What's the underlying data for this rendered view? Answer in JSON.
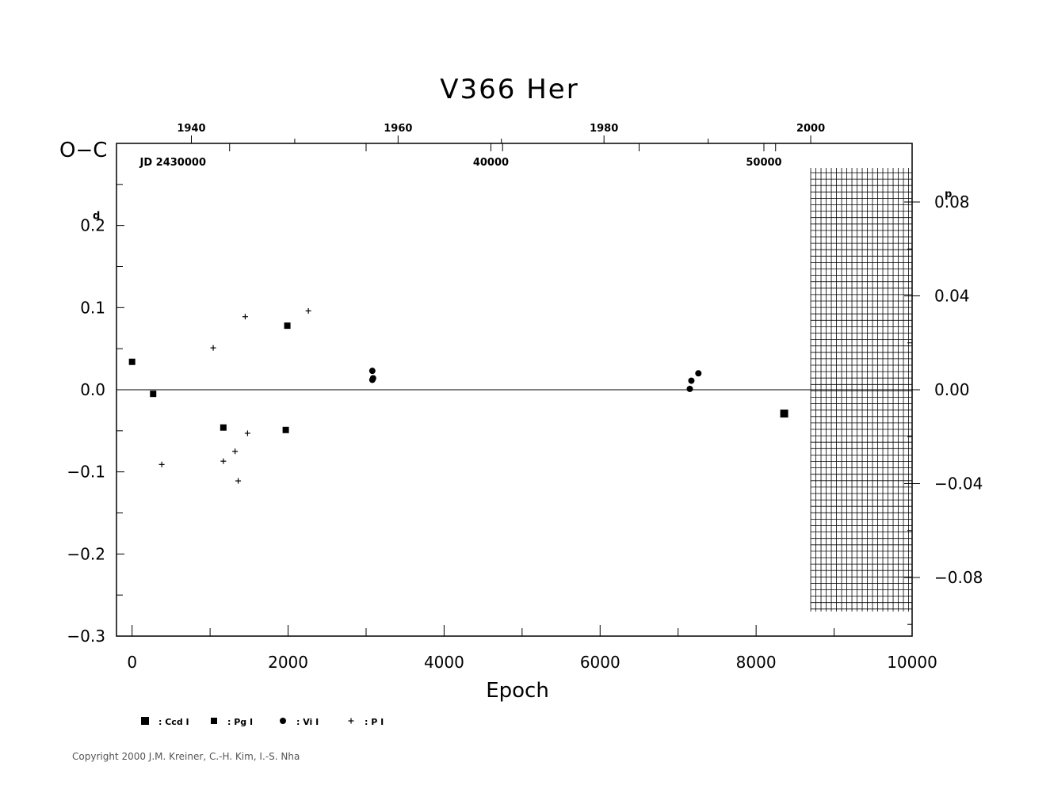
{
  "chart_data": {
    "type": "scatter",
    "title": "V366  Her",
    "xlabel": "Epoch",
    "ylabel": "O−C",
    "ylabel_unit": "d",
    "right_unit": "p",
    "xlim": [
      -200,
      10000
    ],
    "ylim": [
      -0.3,
      0.3
    ],
    "right_ylim": [
      -0.105,
      0.105
    ],
    "x_ticks": [
      0,
      2000,
      4000,
      6000,
      8000,
      10000
    ],
    "x_tick_labels": [
      "0",
      "2000",
      "4000",
      "6000",
      "8000",
      "10000"
    ],
    "y_ticks": [
      -0.3,
      -0.2,
      -0.1,
      0.0,
      0.1,
      0.2
    ],
    "y_tick_labels": [
      "−0.3",
      "−0.2",
      "−0.1",
      "0.0",
      "0.1",
      "0.2"
    ],
    "right_ticks": [
      -0.08,
      -0.04,
      0.0,
      0.04,
      0.08
    ],
    "right_tick_labels": [
      "−0.08",
      "−0.04",
      "0.00",
      "0.04",
      "0.08"
    ],
    "year_ticks": [
      {
        "epoch": 760,
        "label": "1940"
      },
      {
        "epoch": 3410,
        "label": "1960"
      },
      {
        "epoch": 6050,
        "label": "1980"
      },
      {
        "epoch": 8700,
        "label": "2000"
      }
    ],
    "jd_label": "JD  2430000",
    "jd_ticks": [
      {
        "epoch": 4600,
        "label": "40000"
      },
      {
        "epoch": 8100,
        "label": "50000"
      }
    ],
    "hatch_region": [
      8700,
      10000
    ],
    "series": [
      {
        "name": "Ccd I",
        "marker": "square-large",
        "points": [
          [
            8360,
            -0.029
          ]
        ]
      },
      {
        "name": "Pg I",
        "marker": "square-small",
        "points": [
          [
            0,
            0.034
          ],
          [
            270,
            -0.005
          ],
          [
            1170,
            -0.046
          ],
          [
            1990,
            0.078
          ],
          [
            1970,
            -0.049
          ]
        ]
      },
      {
        "name": "Vi I",
        "marker": "circle",
        "points": [
          [
            3080,
            0.023
          ],
          [
            3080,
            0.012
          ],
          [
            3090,
            0.014
          ],
          [
            7150,
            0.001
          ],
          [
            7170,
            0.011
          ],
          [
            7260,
            0.02
          ]
        ]
      },
      {
        "name": "P I",
        "marker": "plus",
        "points": [
          [
            380,
            -0.091
          ],
          [
            1040,
            0.051
          ],
          [
            1170,
            -0.087
          ],
          [
            1320,
            -0.075
          ],
          [
            1360,
            -0.111
          ],
          [
            1450,
            0.089
          ],
          [
            1480,
            -0.053
          ],
          [
            2260,
            0.096
          ]
        ]
      }
    ],
    "grid": false,
    "legend_position": "bottom-left"
  },
  "legend": [
    {
      "marker": "square-large",
      "label": ": Ccd  I"
    },
    {
      "marker": "square-small",
      "label": ": Pg  I"
    },
    {
      "marker": "circle",
      "label": ": Vi  I"
    },
    {
      "marker": "plus",
      "label": ": P  I"
    }
  ],
  "copyright": "Copyright 2000 J.M. Kreiner, C.-H. Kim, I.-S. Nha"
}
